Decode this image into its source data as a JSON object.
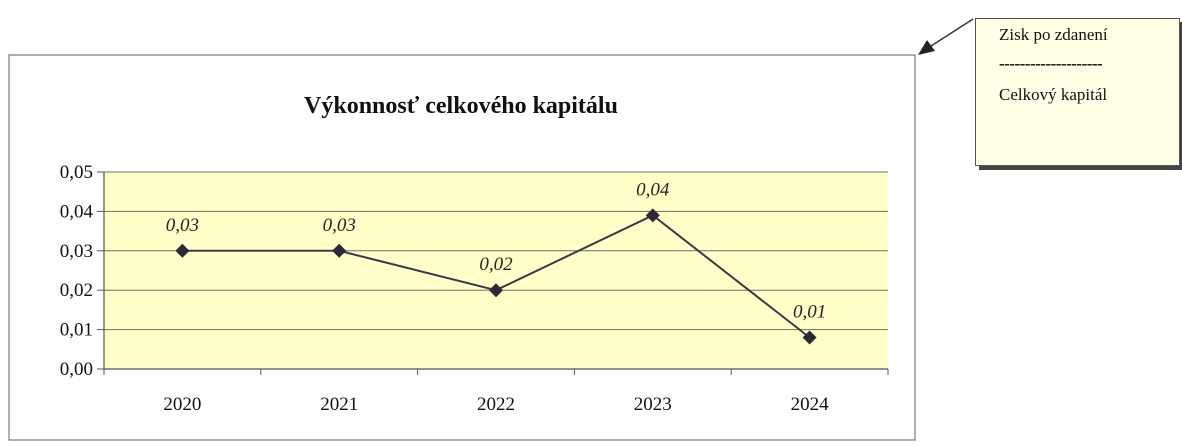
{
  "chart_data": {
    "type": "line",
    "title": "Výkonnosť celkového kapitálu",
    "categories": [
      "2020",
      "2021",
      "2022",
      "2023",
      "2024"
    ],
    "series": [
      {
        "values": [
          0.03,
          0.03,
          0.02,
          0.039,
          0.008
        ],
        "labels": [
          "0,03",
          "0,03",
          "0,02",
          "0,04",
          "0,01"
        ]
      }
    ],
    "yticks": [
      "0,00",
      "0,01",
      "0,02",
      "0,03",
      "0,04",
      "0,05"
    ],
    "ylim": [
      0,
      0.05
    ],
    "grid": true,
    "xlabel": "",
    "ylabel": "",
    "colors": {
      "plot_background": "#ffffc8",
      "line": "#3a3a4a",
      "marker": "#2a2a36",
      "gridline": "#6e6e6e"
    }
  },
  "callout": {
    "numerator": "Zisk po zdanení",
    "divider": "--------------------",
    "denominator": "Celkový kapitál",
    "background": "#ffffe6"
  }
}
